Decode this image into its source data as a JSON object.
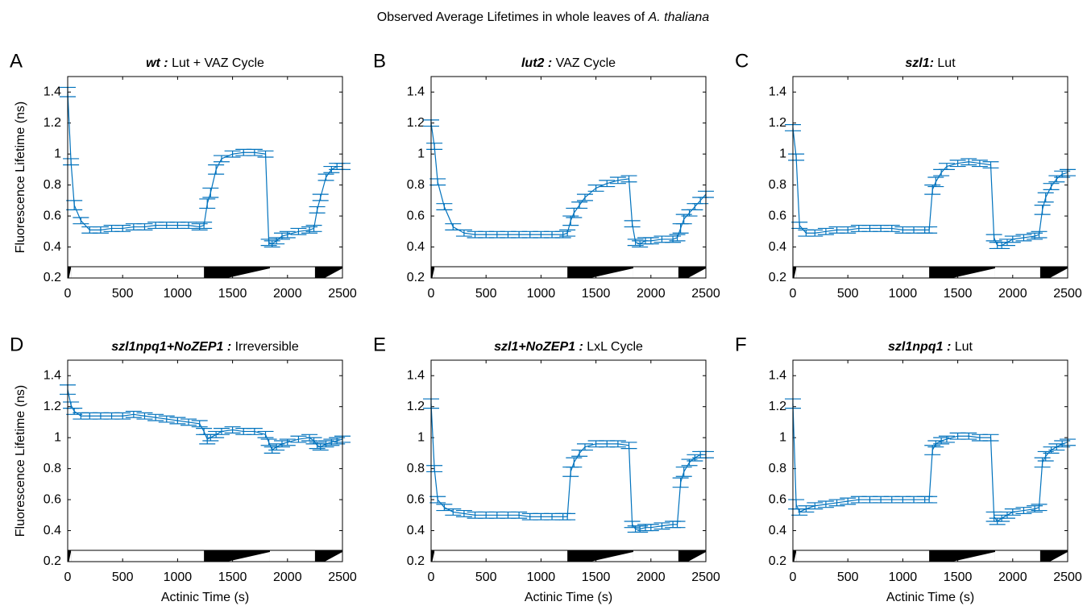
{
  "figure_title": {
    "text": "Observed Average Lifetimes in whole leaves of",
    "species": "A. thaliana"
  },
  "chart_data": [
    {
      "type": "line",
      "panel": "A",
      "title": {
        "genotype": "wt :",
        "condition": "Lut + VAZ Cycle"
      },
      "ylabel": "Fluorescence Lifetime (ns)",
      "color": "#0072bd",
      "xlim": [
        0,
        2500
      ],
      "ylim": [
        0.2,
        1.5
      ],
      "xticks": [
        0,
        500,
        1000,
        1500,
        2000,
        2500
      ],
      "yticks": [
        0.2,
        0.4,
        0.6,
        0.8,
        1,
        1.2,
        1.4
      ],
      "x": [
        0,
        30,
        60,
        120,
        200,
        300,
        400,
        500,
        600,
        700,
        800,
        900,
        1000,
        1100,
        1200,
        1240,
        1270,
        1300,
        1350,
        1400,
        1500,
        1600,
        1700,
        1800,
        1830,
        1860,
        1900,
        1950,
        2000,
        2100,
        2200,
        2240,
        2270,
        2300,
        2350,
        2400,
        2450,
        2500
      ],
      "values": [
        1.4,
        0.95,
        0.67,
        0.57,
        0.51,
        0.51,
        0.52,
        0.52,
        0.53,
        0.53,
        0.54,
        0.54,
        0.54,
        0.54,
        0.53,
        0.54,
        0.68,
        0.75,
        0.9,
        0.97,
        1.0,
        1.01,
        1.01,
        1.0,
        0.43,
        0.42,
        0.44,
        0.47,
        0.48,
        0.5,
        0.51,
        0.52,
        0.64,
        0.72,
        0.85,
        0.9,
        0.92,
        0.92
      ],
      "errors": [
        0.03,
        0.02,
        0.03,
        0.02,
        0.02,
        0.02,
        0.02,
        0.02,
        0.02,
        0.02,
        0.02,
        0.02,
        0.02,
        0.02,
        0.02,
        0.02,
        0.03,
        0.03,
        0.03,
        0.02,
        0.02,
        0.02,
        0.02,
        0.02,
        0.02,
        0.02,
        0.02,
        0.02,
        0.02,
        0.02,
        0.02,
        0.02,
        0.02,
        0.02,
        0.02,
        0.02,
        0.02,
        0.02
      ],
      "dark_periods": [
        [
          0,
          30
        ],
        [
          1240,
          1840
        ],
        [
          2250,
          2500
        ]
      ]
    },
    {
      "type": "line",
      "panel": "B",
      "title": {
        "genotype": "lut2 :",
        "condition": "VAZ Cycle"
      },
      "color": "#0072bd",
      "xlim": [
        0,
        2500
      ],
      "ylim": [
        0.2,
        1.5
      ],
      "xticks": [
        0,
        500,
        1000,
        1500,
        2000,
        2500
      ],
      "yticks": [
        0.2,
        0.4,
        0.6,
        0.8,
        1,
        1.2,
        1.4
      ],
      "x": [
        0,
        30,
        60,
        120,
        200,
        300,
        400,
        500,
        600,
        700,
        800,
        900,
        1000,
        1100,
        1200,
        1240,
        1270,
        1300,
        1350,
        1400,
        1500,
        1600,
        1700,
        1800,
        1830,
        1860,
        1900,
        1950,
        2000,
        2100,
        2200,
        2240,
        2270,
        2300,
        2350,
        2400,
        2450,
        2500
      ],
      "values": [
        1.2,
        1.05,
        0.82,
        0.66,
        0.53,
        0.49,
        0.48,
        0.48,
        0.48,
        0.48,
        0.48,
        0.48,
        0.48,
        0.48,
        0.48,
        0.49,
        0.57,
        0.62,
        0.67,
        0.72,
        0.78,
        0.81,
        0.83,
        0.84,
        0.55,
        0.43,
        0.42,
        0.44,
        0.44,
        0.45,
        0.45,
        0.46,
        0.52,
        0.58,
        0.62,
        0.66,
        0.7,
        0.74
      ],
      "errors": [
        0.02,
        0.02,
        0.02,
        0.02,
        0.02,
        0.02,
        0.02,
        0.02,
        0.02,
        0.02,
        0.02,
        0.02,
        0.02,
        0.02,
        0.02,
        0.02,
        0.03,
        0.03,
        0.02,
        0.02,
        0.02,
        0.02,
        0.02,
        0.02,
        0.02,
        0.02,
        0.02,
        0.02,
        0.02,
        0.02,
        0.02,
        0.02,
        0.03,
        0.03,
        0.02,
        0.02,
        0.02,
        0.02
      ],
      "dark_periods": [
        [
          0,
          30
        ],
        [
          1240,
          1840
        ],
        [
          2250,
          2500
        ]
      ]
    },
    {
      "type": "line",
      "panel": "C",
      "title": {
        "genotype": "szl1:",
        "condition": "Lut"
      },
      "color": "#0072bd",
      "xlim": [
        0,
        2500
      ],
      "ylim": [
        0.2,
        1.5
      ],
      "xticks": [
        0,
        500,
        1000,
        1500,
        2000,
        2500
      ],
      "yticks": [
        0.2,
        0.4,
        0.6,
        0.8,
        1,
        1.2,
        1.4
      ],
      "x": [
        0,
        30,
        60,
        120,
        200,
        300,
        400,
        500,
        600,
        700,
        800,
        900,
        1000,
        1100,
        1200,
        1240,
        1270,
        1300,
        1350,
        1400,
        1500,
        1600,
        1700,
        1800,
        1830,
        1860,
        1900,
        1950,
        2000,
        2100,
        2200,
        2240,
        2270,
        2300,
        2350,
        2400,
        2450,
        2500
      ],
      "values": [
        1.17,
        0.98,
        0.54,
        0.49,
        0.49,
        0.5,
        0.51,
        0.51,
        0.52,
        0.52,
        0.52,
        0.52,
        0.51,
        0.51,
        0.51,
        0.51,
        0.77,
        0.82,
        0.88,
        0.92,
        0.94,
        0.95,
        0.94,
        0.93,
        0.46,
        0.41,
        0.41,
        0.43,
        0.45,
        0.46,
        0.47,
        0.48,
        0.64,
        0.72,
        0.79,
        0.84,
        0.87,
        0.88
      ],
      "errors": [
        0.02,
        0.02,
        0.02,
        0.02,
        0.02,
        0.02,
        0.02,
        0.02,
        0.02,
        0.02,
        0.02,
        0.02,
        0.02,
        0.02,
        0.02,
        0.02,
        0.03,
        0.03,
        0.02,
        0.02,
        0.02,
        0.02,
        0.02,
        0.02,
        0.02,
        0.02,
        0.02,
        0.02,
        0.02,
        0.02,
        0.02,
        0.02,
        0.03,
        0.03,
        0.02,
        0.02,
        0.02,
        0.02
      ],
      "dark_periods": [
        [
          0,
          30
        ],
        [
          1240,
          1840
        ],
        [
          2250,
          2500
        ]
      ]
    },
    {
      "type": "line",
      "panel": "D",
      "title": {
        "genotype": "szl1npq1+NoZEP1  :",
        "condition": "Irreversible"
      },
      "ylabel": "Fluorescence Lifetime (ns)",
      "xlabel": "Actinic Time (s)",
      "color": "#0072bd",
      "xlim": [
        0,
        2500
      ],
      "ylim": [
        0.2,
        1.5
      ],
      "xticks": [
        0,
        500,
        1000,
        1500,
        2000,
        2500
      ],
      "yticks": [
        0.2,
        0.4,
        0.6,
        0.8,
        1,
        1.2,
        1.4
      ],
      "x": [
        0,
        30,
        60,
        120,
        200,
        300,
        400,
        500,
        600,
        700,
        800,
        900,
        1000,
        1100,
        1200,
        1240,
        1270,
        1300,
        1350,
        1400,
        1500,
        1600,
        1700,
        1800,
        1830,
        1860,
        1900,
        1950,
        2000,
        2100,
        2200,
        2240,
        2270,
        2300,
        2350,
        2400,
        2450,
        2500
      ],
      "values": [
        1.31,
        1.21,
        1.17,
        1.14,
        1.14,
        1.14,
        1.14,
        1.14,
        1.15,
        1.14,
        1.13,
        1.12,
        1.11,
        1.1,
        1.09,
        1.04,
        0.99,
        1.0,
        1.02,
        1.04,
        1.05,
        1.04,
        1.04,
        1.02,
        0.97,
        0.92,
        0.94,
        0.96,
        0.97,
        0.99,
        1.0,
        0.98,
        0.95,
        0.94,
        0.96,
        0.97,
        0.98,
        0.99
      ],
      "errors": [
        0.03,
        0.02,
        0.02,
        0.02,
        0.02,
        0.02,
        0.02,
        0.02,
        0.02,
        0.02,
        0.02,
        0.02,
        0.02,
        0.02,
        0.02,
        0.02,
        0.03,
        0.02,
        0.02,
        0.02,
        0.02,
        0.02,
        0.02,
        0.02,
        0.02,
        0.02,
        0.02,
        0.02,
        0.02,
        0.02,
        0.02,
        0.02,
        0.02,
        0.02,
        0.02,
        0.02,
        0.02,
        0.02
      ],
      "dark_periods": [
        [
          0,
          30
        ],
        [
          1240,
          1840
        ],
        [
          2250,
          2500
        ]
      ]
    },
    {
      "type": "line",
      "panel": "E",
      "title": {
        "genotype": "szl1+NoZEP1  :",
        "condition": "LxL Cycle"
      },
      "xlabel": "Actinic Time (s)",
      "color": "#0072bd",
      "xlim": [
        0,
        2500
      ],
      "ylim": [
        0.2,
        1.5
      ],
      "xticks": [
        0,
        500,
        1000,
        1500,
        2000,
        2500
      ],
      "yticks": [
        0.2,
        0.4,
        0.6,
        0.8,
        1,
        1.2,
        1.4
      ],
      "x": [
        0,
        30,
        60,
        120,
        200,
        300,
        400,
        500,
        600,
        700,
        800,
        900,
        1000,
        1100,
        1200,
        1240,
        1270,
        1300,
        1350,
        1400,
        1500,
        1600,
        1700,
        1800,
        1830,
        1860,
        1900,
        1950,
        2000,
        2100,
        2200,
        2240,
        2270,
        2300,
        2350,
        2400,
        2450,
        2500
      ],
      "values": [
        1.22,
        0.8,
        0.6,
        0.55,
        0.52,
        0.51,
        0.5,
        0.5,
        0.5,
        0.5,
        0.5,
        0.49,
        0.49,
        0.49,
        0.49,
        0.49,
        0.78,
        0.84,
        0.9,
        0.94,
        0.96,
        0.96,
        0.96,
        0.95,
        0.44,
        0.41,
        0.41,
        0.42,
        0.42,
        0.43,
        0.44,
        0.44,
        0.71,
        0.78,
        0.84,
        0.87,
        0.89,
        0.89
      ],
      "errors": [
        0.03,
        0.02,
        0.02,
        0.02,
        0.02,
        0.02,
        0.02,
        0.02,
        0.02,
        0.02,
        0.02,
        0.02,
        0.02,
        0.02,
        0.02,
        0.02,
        0.03,
        0.03,
        0.02,
        0.02,
        0.02,
        0.02,
        0.02,
        0.02,
        0.02,
        0.02,
        0.02,
        0.02,
        0.02,
        0.02,
        0.02,
        0.02,
        0.03,
        0.03,
        0.02,
        0.02,
        0.02,
        0.02
      ],
      "dark_periods": [
        [
          0,
          30
        ],
        [
          1240,
          1840
        ],
        [
          2250,
          2500
        ]
      ]
    },
    {
      "type": "line",
      "panel": "F",
      "title": {
        "genotype": "szl1npq1 :",
        "condition": "Lut"
      },
      "xlabel": "Actinic Time (s)",
      "color": "#0072bd",
      "xlim": [
        0,
        2500
      ],
      "ylim": [
        0.2,
        1.5
      ],
      "xticks": [
        0,
        500,
        1000,
        1500,
        2000,
        2500
      ],
      "yticks": [
        0.2,
        0.4,
        0.6,
        0.8,
        1,
        1.2,
        1.4
      ],
      "x": [
        0,
        30,
        60,
        120,
        200,
        300,
        400,
        500,
        600,
        700,
        800,
        900,
        1000,
        1100,
        1200,
        1240,
        1270,
        1300,
        1350,
        1400,
        1500,
        1600,
        1700,
        1800,
        1830,
        1860,
        1900,
        1950,
        2000,
        2100,
        2200,
        2240,
        2270,
        2300,
        2350,
        2400,
        2450,
        2500
      ],
      "values": [
        1.22,
        0.57,
        0.52,
        0.54,
        0.56,
        0.57,
        0.58,
        0.59,
        0.6,
        0.6,
        0.6,
        0.6,
        0.6,
        0.6,
        0.6,
        0.6,
        0.92,
        0.96,
        0.98,
        0.99,
        1.01,
        1.01,
        1.0,
        1.0,
        0.49,
        0.46,
        0.48,
        0.5,
        0.52,
        0.53,
        0.54,
        0.55,
        0.84,
        0.88,
        0.92,
        0.94,
        0.96,
        0.97
      ],
      "errors": [
        0.03,
        0.03,
        0.02,
        0.02,
        0.02,
        0.02,
        0.02,
        0.02,
        0.02,
        0.02,
        0.02,
        0.02,
        0.02,
        0.02,
        0.02,
        0.02,
        0.03,
        0.02,
        0.02,
        0.02,
        0.02,
        0.02,
        0.02,
        0.02,
        0.03,
        0.02,
        0.02,
        0.02,
        0.02,
        0.02,
        0.02,
        0.02,
        0.03,
        0.03,
        0.02,
        0.02,
        0.02,
        0.02
      ],
      "dark_periods": [
        [
          0,
          30
        ],
        [
          1240,
          1840
        ],
        [
          2250,
          2500
        ]
      ]
    }
  ]
}
